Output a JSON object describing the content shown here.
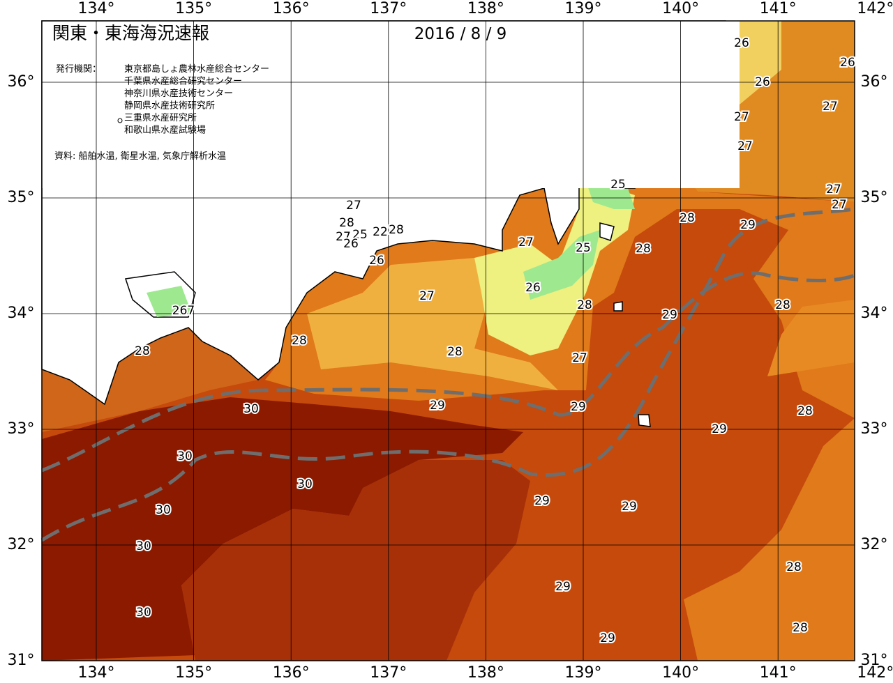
{
  "header": {
    "title": "関東・東海海況速報",
    "date": "2016 / 8 / 9",
    "issuer_label": "発行機関：",
    "issuers": [
      "東京都島しょ農林水産総合センター",
      "千葉県水産総合研究センター",
      "神奈川県水産技術センター",
      "静岡県水産技術研究所",
      "三重県水産研究所",
      "和歌山県水産試験場"
    ],
    "source": "資料: 船舶水温, 衛星水温, 気象庁解析水温"
  },
  "longitudes": [
    "134°",
    "135°",
    "136°",
    "137°",
    "138°",
    "139°",
    "140°",
    "141°",
    "142°"
  ],
  "latitudes": [
    "36°",
    "35°",
    "34°",
    "33°",
    "32°",
    "31°"
  ],
  "contour_labels": [
    "26",
    "26",
    "26",
    "27",
    "27",
    "27",
    "25",
    "27",
    "27",
    "27",
    "28",
    "25",
    "27",
    "26",
    "22",
    "28",
    "28",
    "29",
    "27",
    "25",
    "28",
    "26",
    "27",
    "26",
    "28",
    "29",
    "28",
    "267",
    "28",
    "28",
    "28",
    "27",
    "30",
    "29",
    "29",
    "28",
    "29",
    "30",
    "30",
    "29",
    "29",
    "30",
    "30",
    "28",
    "29",
    "30",
    "29",
    "28"
  ]
}
